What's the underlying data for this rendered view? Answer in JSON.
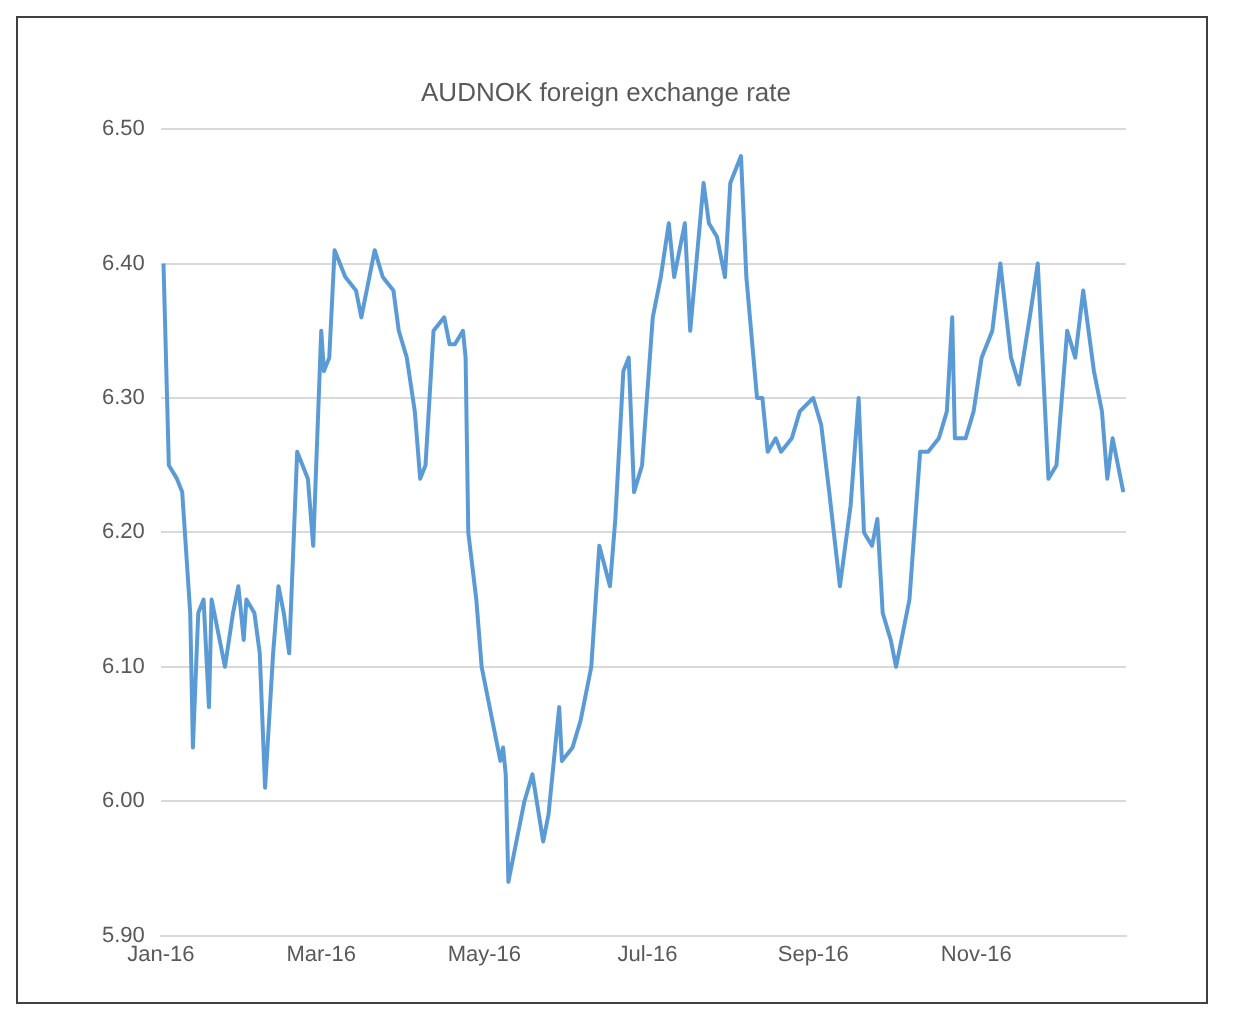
{
  "chart_data": {
    "type": "line",
    "title": "AUDNOK foreign exchange rate",
    "x": [
      "2016-01-02",
      "2016-01-04",
      "2016-01-07",
      "2016-01-09",
      "2016-01-12",
      "2016-01-13",
      "2016-01-15",
      "2016-01-17",
      "2016-01-19",
      "2016-01-20",
      "2016-01-23",
      "2016-01-25",
      "2016-01-28",
      "2016-01-30",
      "2016-02-01",
      "2016-02-02",
      "2016-02-05",
      "2016-02-07",
      "2016-02-09",
      "2016-02-12",
      "2016-02-14",
      "2016-02-16",
      "2016-02-18",
      "2016-02-21",
      "2016-02-25",
      "2016-02-27",
      "2016-03-01",
      "2016-03-02",
      "2016-03-04",
      "2016-03-06",
      "2016-03-10",
      "2016-03-14",
      "2016-03-16",
      "2016-03-17",
      "2016-03-21",
      "2016-03-24",
      "2016-03-28",
      "2016-03-30",
      "2016-04-02",
      "2016-04-05",
      "2016-04-07",
      "2016-04-09",
      "2016-04-12",
      "2016-04-16",
      "2016-04-18",
      "2016-04-20",
      "2016-04-23",
      "2016-04-24",
      "2016-04-25",
      "2016-04-28",
      "2016-04-30",
      "2016-05-04",
      "2016-05-07",
      "2016-05-08",
      "2016-05-09",
      "2016-05-10",
      "2016-05-12",
      "2016-05-16",
      "2016-05-19",
      "2016-05-23",
      "2016-05-25",
      "2016-05-29",
      "2016-05-30",
      "2016-06-03",
      "2016-06-06",
      "2016-06-10",
      "2016-06-13",
      "2016-06-17",
      "2016-06-19",
      "2016-06-22",
      "2016-06-24",
      "2016-06-26",
      "2016-06-29",
      "2016-07-03",
      "2016-07-06",
      "2016-07-09",
      "2016-07-11",
      "2016-07-15",
      "2016-07-17",
      "2016-07-22",
      "2016-07-24",
      "2016-07-27",
      "2016-07-30",
      "2016-08-01",
      "2016-08-05",
      "2016-08-07",
      "2016-08-11",
      "2016-08-13",
      "2016-08-15",
      "2016-08-18",
      "2016-08-20",
      "2016-08-24",
      "2016-08-27",
      "2016-09-01",
      "2016-09-04",
      "2016-09-07",
      "2016-09-11",
      "2016-09-15",
      "2016-09-18",
      "2016-09-20",
      "2016-09-23",
      "2016-09-25",
      "2016-09-27",
      "2016-09-30",
      "2016-10-02",
      "2016-10-07",
      "2016-10-11",
      "2016-10-14",
      "2016-10-18",
      "2016-10-21",
      "2016-10-23",
      "2016-10-24",
      "2016-10-28",
      "2016-10-31",
      "2016-11-03",
      "2016-11-07",
      "2016-11-10",
      "2016-11-14",
      "2016-11-17",
      "2016-11-21",
      "2016-11-24",
      "2016-11-28",
      "2016-12-01",
      "2016-12-05",
      "2016-12-08",
      "2016-12-11",
      "2016-12-15",
      "2016-12-18",
      "2016-12-20",
      "2016-12-22",
      "2016-12-26"
    ],
    "series": [
      {
        "color": "#5b9bd5",
        "values": [
          6.4,
          6.25,
          6.24,
          6.23,
          6.14,
          6.04,
          6.14,
          6.15,
          6.07,
          6.15,
          6.12,
          6.1,
          6.14,
          6.16,
          6.12,
          6.15,
          6.14,
          6.11,
          6.01,
          6.11,
          6.16,
          6.14,
          6.11,
          6.26,
          6.24,
          6.19,
          6.35,
          6.32,
          6.33,
          6.41,
          6.39,
          6.38,
          6.36,
          6.37,
          6.41,
          6.39,
          6.38,
          6.35,
          6.33,
          6.29,
          6.24,
          6.25,
          6.35,
          6.36,
          6.34,
          6.34,
          6.35,
          6.33,
          6.2,
          6.15,
          6.1,
          6.06,
          6.03,
          6.04,
          6.02,
          5.94,
          5.96,
          6.0,
          6.02,
          5.97,
          5.99,
          6.07,
          6.03,
          6.04,
          6.06,
          6.1,
          6.19,
          6.16,
          6.21,
          6.32,
          6.33,
          6.23,
          6.25,
          6.36,
          6.39,
          6.43,
          6.39,
          6.43,
          6.35,
          6.46,
          6.43,
          6.42,
          6.39,
          6.46,
          6.48,
          6.39,
          6.3,
          6.3,
          6.26,
          6.27,
          6.26,
          6.27,
          6.29,
          6.3,
          6.28,
          6.23,
          6.16,
          6.22,
          6.3,
          6.2,
          6.19,
          6.21,
          6.14,
          6.12,
          6.1,
          6.15,
          6.26,
          6.26,
          6.27,
          6.29,
          6.36,
          6.27,
          6.27,
          6.29,
          6.33,
          6.35,
          6.4,
          6.33,
          6.31,
          6.36,
          6.4,
          6.24,
          6.25,
          6.35,
          6.33,
          6.38,
          6.32,
          6.29,
          6.24,
          6.27,
          6.23
        ]
      }
    ],
    "xlim": [
      "2016-01-01",
      "2016-12-27"
    ],
    "xticks": [
      {
        "value": "2016-01-01",
        "label": "Jan-16"
      },
      {
        "value": "2016-03-01",
        "label": "Mar-16"
      },
      {
        "value": "2016-05-01",
        "label": "May-16"
      },
      {
        "value": "2016-07-01",
        "label": "Jul-16"
      },
      {
        "value": "2016-09-01",
        "label": "Sep-16"
      },
      {
        "value": "2016-11-01",
        "label": "Nov-16"
      }
    ],
    "ylim": [
      5.9,
      6.5
    ],
    "yticks": [
      {
        "value": 5.9,
        "label": "5.90"
      },
      {
        "value": 6.0,
        "label": "6.00"
      },
      {
        "value": 6.1,
        "label": "6.10"
      },
      {
        "value": 6.2,
        "label": "6.20"
      },
      {
        "value": 6.3,
        "label": "6.30"
      },
      {
        "value": 6.4,
        "label": "6.40"
      },
      {
        "value": 6.5,
        "label": "6.50"
      }
    ],
    "grid": "y",
    "legend": false,
    "marker": "none",
    "line_style": "solid"
  }
}
